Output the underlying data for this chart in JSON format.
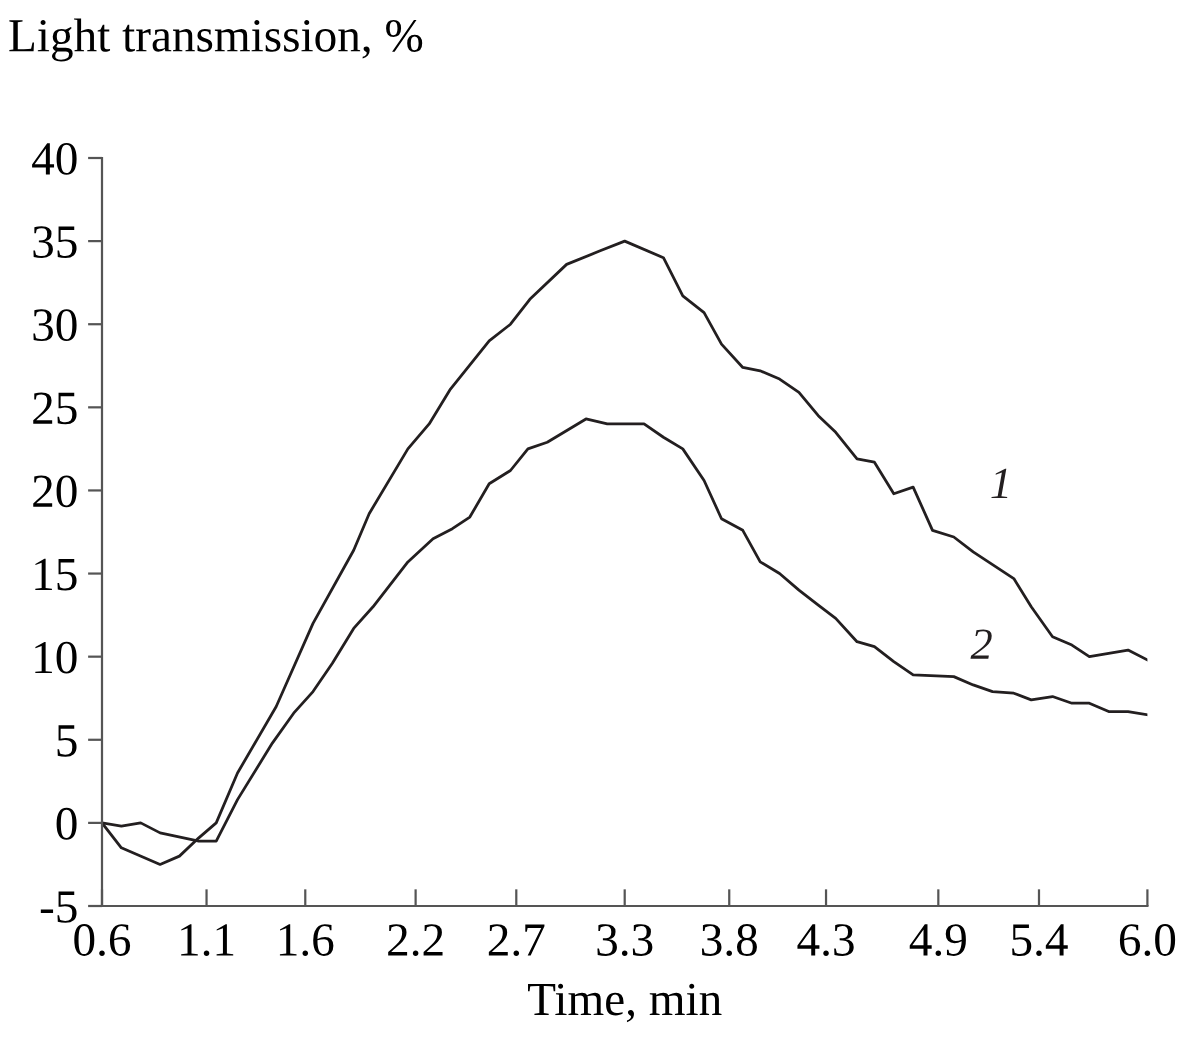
{
  "chart_data": {
    "type": "line",
    "xlabel": "Time, min",
    "ylabel": "Light transmission, %",
    "xlim": [
      0.6,
      6.0
    ],
    "ylim": [
      -5,
      40
    ],
    "xticks": [
      0.6,
      {
        "value": 1.14,
        "label": "1.1"
      },
      {
        "value": 1.65,
        "label": "1.6"
      },
      {
        "value": 2.22,
        "label": "2.2"
      },
      {
        "value": 2.74,
        "label": "2.7"
      },
      3.3,
      {
        "value": 3.84,
        "label": "3.8"
      },
      {
        "value": 4.34,
        "label": "4.3"
      },
      {
        "value": 4.92,
        "label": "4.9"
      },
      {
        "value": 5.44,
        "label": "5.4"
      },
      {
        "value": 6.0,
        "label": "6.0"
      }
    ],
    "yticks": [
      -5,
      0,
      5,
      10,
      15,
      20,
      25,
      30,
      35,
      40
    ],
    "grid": false,
    "legend": false,
    "marker": "none",
    "line_style": "solid",
    "series": [
      {
        "name": "1",
        "color": "#231f20",
        "x": [
          0.6,
          0.7,
          0.9,
          1.0,
          1.1,
          1.19,
          1.3,
          1.5,
          1.69,
          1.9,
          1.98,
          2.18,
          2.29,
          2.4,
          2.6,
          2.71,
          2.81,
          3.0,
          3.17,
          3.3,
          3.5,
          3.6,
          3.71,
          3.8,
          3.91,
          4.0,
          4.1,
          4.2,
          4.3,
          4.39,
          4.5,
          4.59,
          4.69,
          4.79,
          4.89,
          5.0,
          5.1,
          5.31,
          5.4,
          5.51,
          5.61,
          5.7,
          5.9,
          6.0
        ],
        "values": [
          0,
          -1.5,
          -2.5,
          -2.0,
          -0.9,
          0,
          3,
          7,
          12,
          16.4,
          18.6,
          22.5,
          24,
          26.1,
          29,
          30,
          31.5,
          33.6,
          34.4,
          35,
          34,
          31.7,
          30.7,
          28.8,
          27.4,
          27.2,
          26.7,
          25.9,
          24.5,
          23.5,
          21.9,
          21.7,
          19.8,
          20.2,
          17.6,
          17.2,
          16.3,
          14.7,
          13.0,
          11.2,
          10.7,
          10.0,
          10.4,
          9.8
        ]
      },
      {
        "name": "2",
        "color": "#231f20",
        "x": [
          0.6,
          0.7,
          0.8,
          0.9,
          1.1,
          1.19,
          1.3,
          1.48,
          1.59,
          1.69,
          1.79,
          1.9,
          2.0,
          2.18,
          2.31,
          2.41,
          2.5,
          2.6,
          2.71,
          2.8,
          2.9,
          3.1,
          3.21,
          3.4,
          3.5,
          3.6,
          3.71,
          3.8,
          3.91,
          4.0,
          4.1,
          4.2,
          4.3,
          4.39,
          4.5,
          4.59,
          4.69,
          4.79,
          5.0,
          5.1,
          5.2,
          5.31,
          5.4,
          5.51,
          5.61,
          5.7,
          5.8,
          5.9,
          6.0
        ],
        "values": [
          0,
          -0.2,
          0,
          -0.6,
          -1.1,
          -1.1,
          1.4,
          4.8,
          6.6,
          7.9,
          9.6,
          11.7,
          13,
          15.7,
          17.1,
          17.7,
          18.4,
          20.4,
          21.2,
          22.5,
          22.9,
          24.3,
          24.0,
          24.0,
          23.2,
          22.5,
          20.6,
          18.3,
          17.6,
          15.7,
          15.0,
          14.0,
          13.1,
          12.3,
          10.9,
          10.6,
          9.7,
          8.9,
          8.8,
          8.3,
          7.9,
          7.8,
          7.4,
          7.6,
          7.2,
          7.2,
          6.7,
          6.7,
          6.5
        ]
      }
    ]
  }
}
